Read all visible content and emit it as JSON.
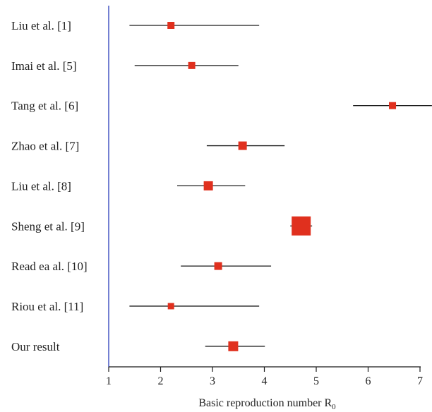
{
  "chart_data": {
    "type": "scatter",
    "subtype": "forest-plot",
    "title": "",
    "xlabel": "Basic reproduction number R",
    "xlabel_subscript": "0",
    "ylabel": "",
    "xlim": [
      1,
      7
    ],
    "xticks": [
      1,
      2,
      3,
      4,
      5,
      6,
      7
    ],
    "grid": false,
    "legend": "none",
    "colors": {
      "marker": "#e0301e",
      "whisker": "#1a1a1a",
      "axis": "#1a1a1a",
      "reference_line": "#3a4bbf"
    },
    "reference_line_x": 1,
    "studies": [
      {
        "label": "Liu et al. [1]",
        "estimate": 2.2,
        "lower": 1.4,
        "upper": 3.9,
        "weight": 1
      },
      {
        "label": "Imai et al. [5]",
        "estimate": 2.6,
        "lower": 1.5,
        "upper": 3.5,
        "weight": 1
      },
      {
        "label": "Tang et al. [6]",
        "estimate": 6.47,
        "lower": 5.71,
        "upper": 7.23,
        "weight": 1
      },
      {
        "label": "Zhao et al. [7]",
        "estimate": 3.58,
        "lower": 2.89,
        "upper": 4.39,
        "weight": 1.2
      },
      {
        "label": "Liu et al. [8]",
        "estimate": 2.92,
        "lower": 2.32,
        "upper": 3.63,
        "weight": 1.3
      },
      {
        "label": "Sheng et al. [9]",
        "estimate": 4.71,
        "lower": 4.5,
        "upper": 4.92,
        "weight": 2.7
      },
      {
        "label": "Read ea al. [10]",
        "estimate": 3.11,
        "lower": 2.39,
        "upper": 4.13,
        "weight": 1.1
      },
      {
        "label": "Riou et al. [11]",
        "estimate": 2.2,
        "lower": 1.4,
        "upper": 3.9,
        "weight": 0.9
      },
      {
        "label": "Our result",
        "estimate": 3.4,
        "lower": 2.86,
        "upper": 4.01,
        "weight": 1.4
      }
    ]
  }
}
